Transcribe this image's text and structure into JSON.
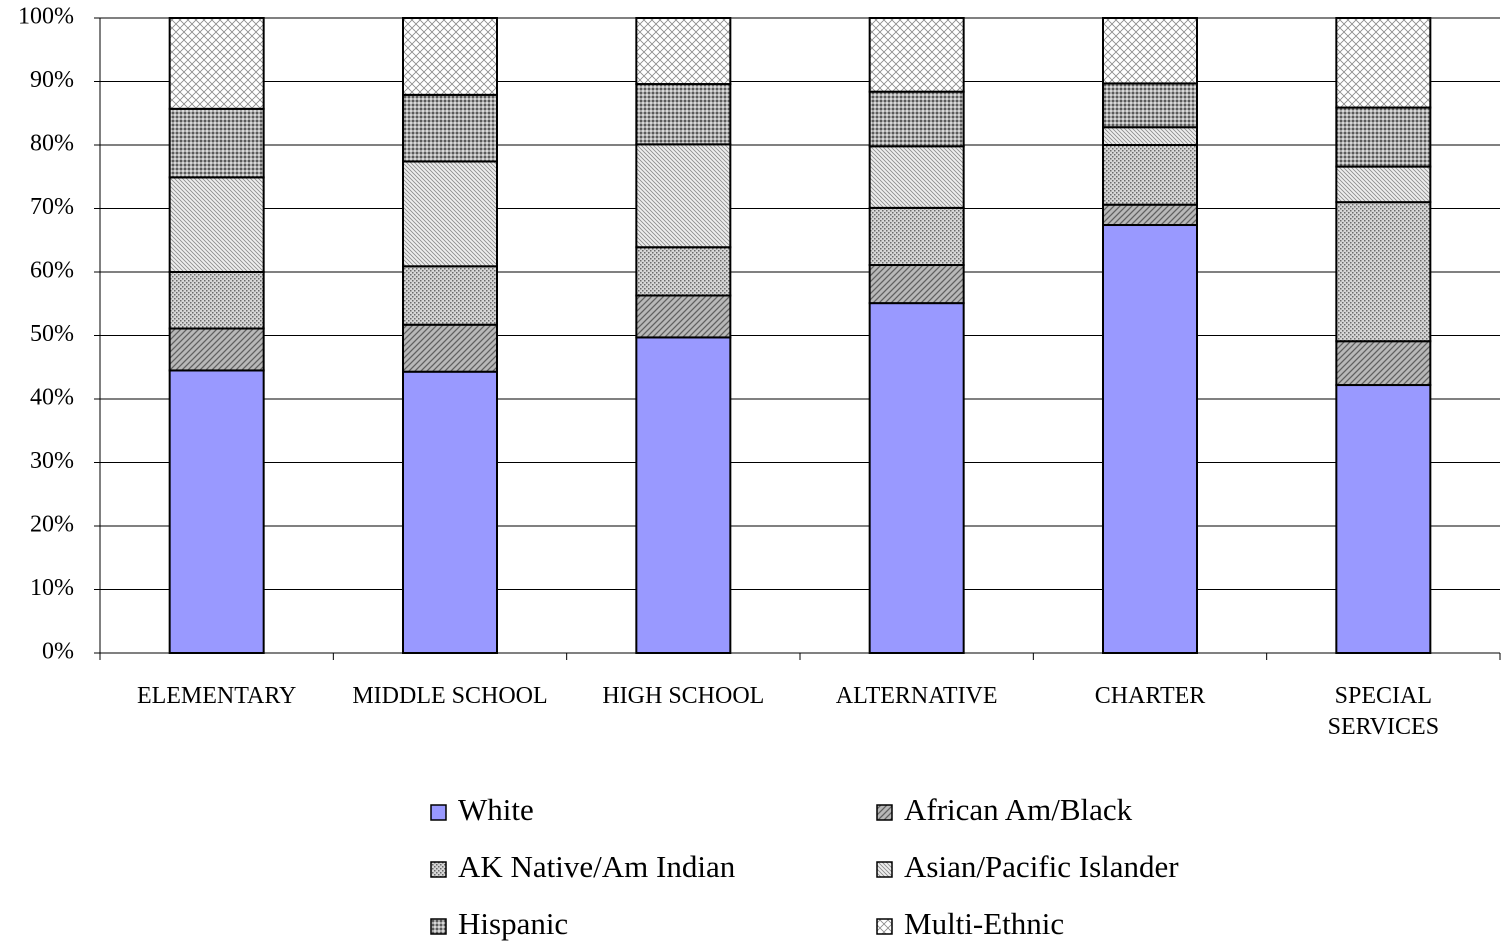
{
  "chart_data": {
    "type": "bar",
    "stacked": true,
    "percent": true,
    "categories": [
      "ELEMENTARY",
      "MIDDLE SCHOOL",
      "HIGH SCHOOL",
      "ALTERNATIVE",
      "CHARTER",
      "SPECIAL SERVICES"
    ],
    "category_lines": [
      [
        "ELEMENTARY"
      ],
      [
        "MIDDLE SCHOOL"
      ],
      [
        "HIGH SCHOOL"
      ],
      [
        "ALTERNATIVE"
      ],
      [
        "CHARTER"
      ],
      [
        "SPECIAL",
        "SERVICES"
      ]
    ],
    "series": [
      {
        "name": "White",
        "values": [
          44.5,
          44.3,
          49.7,
          55.1,
          67.4,
          42.2
        ],
        "color": "#9999ff",
        "pattern": "solid"
      },
      {
        "name": "African Am/Black",
        "values": [
          6.6,
          7.4,
          6.6,
          6.0,
          3.2,
          6.9
        ],
        "color": "#a0a0a0",
        "pattern": "diag"
      },
      {
        "name": "AK Native/Am Indian",
        "values": [
          8.9,
          9.2,
          7.6,
          9.0,
          9.4,
          21.9
        ],
        "color": "#c8c8c8",
        "pattern": "dots"
      },
      {
        "name": "Asian/Pacific Islander",
        "values": [
          14.9,
          16.5,
          16.2,
          9.7,
          2.8,
          5.6
        ],
        "color": "#e0e0e0",
        "pattern": "fine"
      },
      {
        "name": "Hispanic",
        "values": [
          10.8,
          10.5,
          9.5,
          8.6,
          6.9,
          9.3
        ],
        "color": "#b4b4b4",
        "pattern": "dense"
      },
      {
        "name": "Multi-Ethnic",
        "values": [
          14.3,
          12.1,
          10.4,
          11.6,
          10.3,
          14.1
        ],
        "color": "#f0f0f0",
        "pattern": "cross"
      }
    ],
    "ylim": [
      0,
      100
    ],
    "yticks": [
      "0%",
      "10%",
      "20%",
      "30%",
      "40%",
      "50%",
      "60%",
      "70%",
      "80%",
      "90%",
      "100%"
    ],
    "grid": true,
    "legend": "bottom"
  }
}
